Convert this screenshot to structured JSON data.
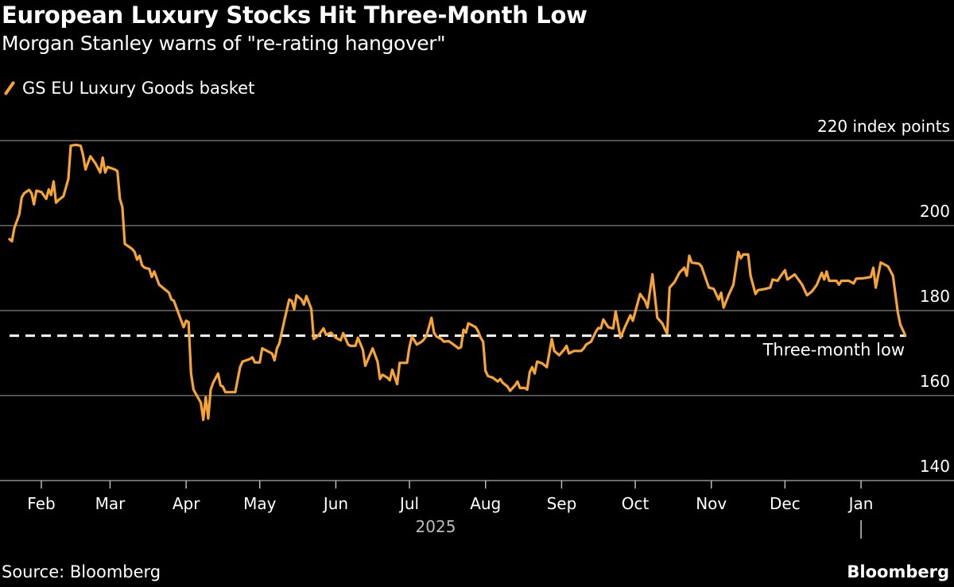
{
  "title": "European Luxury Stocks Hit Three-Month Low",
  "subtitle": "Morgan Stanley warns of \"re-rating hangover\"",
  "source": "Source: Bloomberg",
  "logo": "Bloomberg",
  "colors": {
    "series": "#f7a437",
    "grid": "#6b6b6b",
    "annotation": "#ffffff",
    "background": "#000000",
    "year_label": "#bdbdbd"
  },
  "chart_data": {
    "type": "line",
    "title": "European Luxury Stocks Hit Three-Month Low",
    "subtitle": "Morgan Stanley warns of \"re-rating hangover\"",
    "xlabel": "2025",
    "ylabel": "",
    "y_unit_label": "220 index points",
    "ylim": [
      140,
      220
    ],
    "xlim": [
      "2025-01-19",
      "2026-01-19"
    ],
    "y_ticks": [
      {
        "value": 220,
        "label": "220 index points"
      },
      {
        "value": 200,
        "label": "200"
      },
      {
        "value": 180,
        "label": "180"
      },
      {
        "value": 160,
        "label": "160"
      },
      {
        "value": 140,
        "label": "140"
      }
    ],
    "x_ticks": [
      {
        "date": "2025-02-01",
        "label": "Feb"
      },
      {
        "date": "2025-03-01",
        "label": "Mar"
      },
      {
        "date": "2025-04-01",
        "label": "Apr"
      },
      {
        "date": "2025-05-01",
        "label": "May"
      },
      {
        "date": "2025-06-01",
        "label": "Jun"
      },
      {
        "date": "2025-07-01",
        "label": "Jul"
      },
      {
        "date": "2025-08-01",
        "label": "Aug"
      },
      {
        "date": "2025-09-01",
        "label": "Sep"
      },
      {
        "date": "2025-10-01",
        "label": "Oct"
      },
      {
        "date": "2025-11-01",
        "label": "Nov"
      },
      {
        "date": "2025-12-01",
        "label": "Dec"
      },
      {
        "date": "2026-01-01",
        "label": "Jan"
      }
    ],
    "grid": true,
    "legend": "top-left",
    "annotation": {
      "label": "Three-month low",
      "value": 174.1,
      "style": "dashed"
    },
    "series": [
      {
        "name": "GS EU Luxury Goods basket",
        "points": [
          [
            "2025-01-19",
            196.8
          ],
          [
            "2025-01-20",
            196.3
          ],
          [
            "2025-01-21",
            199.4
          ],
          [
            "2025-01-23",
            202.6
          ],
          [
            "2025-01-24",
            206.6
          ],
          [
            "2025-01-25",
            207.6
          ],
          [
            "2025-01-27",
            208.4
          ],
          [
            "2025-01-28",
            207.6
          ],
          [
            "2025-01-29",
            205.0
          ],
          [
            "2025-01-30",
            208.2
          ],
          [
            "2025-02-01",
            207.9
          ],
          [
            "2025-02-03",
            206.3
          ],
          [
            "2025-02-04",
            208.5
          ],
          [
            "2025-02-05",
            207.2
          ],
          [
            "2025-02-06",
            210.4
          ],
          [
            "2025-02-07",
            205.4
          ],
          [
            "2025-02-08",
            206.0
          ],
          [
            "2025-02-10",
            206.9
          ],
          [
            "2025-02-12",
            211.0
          ],
          [
            "2025-02-13",
            218.8
          ],
          [
            "2025-02-15",
            219.0
          ],
          [
            "2025-02-17",
            218.8
          ],
          [
            "2025-02-18",
            216.6
          ],
          [
            "2025-02-19",
            213.2
          ],
          [
            "2025-02-21",
            216.3
          ],
          [
            "2025-02-23",
            214.7
          ],
          [
            "2025-02-25",
            212.5
          ],
          [
            "2025-02-26",
            216.0
          ],
          [
            "2025-02-27",
            212.5
          ],
          [
            "2025-02-28",
            213.8
          ],
          [
            "2025-03-03",
            213.2
          ],
          [
            "2025-03-04",
            212.8
          ],
          [
            "2025-03-05",
            206.3
          ],
          [
            "2025-03-06",
            204.4
          ],
          [
            "2025-03-07",
            195.7
          ],
          [
            "2025-03-10",
            194.5
          ],
          [
            "2025-03-11",
            193.8
          ],
          [
            "2025-03-12",
            192.0
          ],
          [
            "2025-03-13",
            192.9
          ],
          [
            "2025-03-14",
            190.7
          ],
          [
            "2025-03-15",
            190.1
          ],
          [
            "2025-03-17",
            189.8
          ],
          [
            "2025-03-18",
            187.9
          ],
          [
            "2025-03-19",
            189.2
          ],
          [
            "2025-03-21",
            186.1
          ],
          [
            "2025-03-25",
            184.2
          ],
          [
            "2025-03-26",
            182.6
          ],
          [
            "2025-03-27",
            182.3
          ],
          [
            "2025-03-31",
            176.1
          ],
          [
            "2025-04-01",
            177.6
          ],
          [
            "2025-04-02",
            177.3
          ],
          [
            "2025-04-03",
            165.2
          ],
          [
            "2025-04-04",
            161.4
          ],
          [
            "2025-04-07",
            158.3
          ],
          [
            "2025-04-08",
            154.3
          ],
          [
            "2025-04-09",
            159.6
          ],
          [
            "2025-04-10",
            154.6
          ],
          [
            "2025-04-11",
            161.4
          ],
          [
            "2025-04-12",
            163.0
          ],
          [
            "2025-04-14",
            165.2
          ],
          [
            "2025-04-15",
            162.4
          ],
          [
            "2025-04-16",
            162.1
          ],
          [
            "2025-04-17",
            160.8
          ],
          [
            "2025-04-21",
            160.8
          ],
          [
            "2025-04-23",
            166.7
          ],
          [
            "2025-04-24",
            168.0
          ],
          [
            "2025-04-27",
            168.6
          ],
          [
            "2025-04-28",
            169.0
          ],
          [
            "2025-04-29",
            167.8
          ],
          [
            "2025-05-01",
            167.8
          ],
          [
            "2025-05-02",
            171.1
          ],
          [
            "2025-05-04",
            170.5
          ],
          [
            "2025-05-05",
            170.2
          ],
          [
            "2025-05-06",
            169.9
          ],
          [
            "2025-05-07",
            168.3
          ],
          [
            "2025-05-08",
            171.1
          ],
          [
            "2025-05-09",
            172.3
          ],
          [
            "2025-05-11",
            177.6
          ],
          [
            "2025-05-13",
            182.6
          ],
          [
            "2025-05-14",
            182.3
          ],
          [
            "2025-05-15",
            180.3
          ],
          [
            "2025-05-16",
            183.6
          ],
          [
            "2025-05-18",
            182.6
          ],
          [
            "2025-05-19",
            181.4
          ],
          [
            "2025-05-20",
            183.4
          ],
          [
            "2025-05-22",
            180.4
          ],
          [
            "2025-05-23",
            173.3
          ],
          [
            "2025-05-25",
            174.2
          ],
          [
            "2025-05-27",
            175.8
          ],
          [
            "2025-05-28",
            174.3
          ],
          [
            "2025-05-30",
            174.8
          ],
          [
            "2025-06-01",
            173.6
          ],
          [
            "2025-06-03",
            173.0
          ],
          [
            "2025-06-04",
            174.7
          ],
          [
            "2025-06-06",
            172.0
          ],
          [
            "2025-06-07",
            171.7
          ],
          [
            "2025-06-09",
            171.7
          ],
          [
            "2025-06-10",
            173.6
          ],
          [
            "2025-06-12",
            170.8
          ],
          [
            "2025-06-13",
            167.0
          ],
          [
            "2025-06-16",
            171.1
          ],
          [
            "2025-06-18",
            168.0
          ],
          [
            "2025-06-19",
            163.9
          ],
          [
            "2025-06-20",
            164.9
          ],
          [
            "2025-06-22",
            164.2
          ],
          [
            "2025-06-23",
            163.6
          ],
          [
            "2025-06-24",
            166.1
          ],
          [
            "2025-06-26",
            162.7
          ],
          [
            "2025-06-27",
            167.7
          ],
          [
            "2025-06-30",
            167.7
          ],
          [
            "2025-07-01",
            171.4
          ],
          [
            "2025-07-02",
            173.9
          ],
          [
            "2025-07-04",
            172.0
          ],
          [
            "2025-07-06",
            172.7
          ],
          [
            "2025-07-07",
            173.3
          ],
          [
            "2025-07-08",
            174.2
          ],
          [
            "2025-07-10",
            178.3
          ],
          [
            "2025-07-11",
            174.8
          ],
          [
            "2025-07-12",
            173.9
          ],
          [
            "2025-07-14",
            173.3
          ],
          [
            "2025-07-15",
            172.7
          ],
          [
            "2025-07-17",
            172.8
          ],
          [
            "2025-07-19",
            172.0
          ],
          [
            "2025-07-21",
            171.1
          ],
          [
            "2025-07-22",
            171.4
          ],
          [
            "2025-07-23",
            175.5
          ],
          [
            "2025-07-24",
            174.8
          ],
          [
            "2025-07-25",
            177.0
          ],
          [
            "2025-07-28",
            176.1
          ],
          [
            "2025-07-29",
            175.1
          ],
          [
            "2025-07-30",
            173.6
          ],
          [
            "2025-07-31",
            172.7
          ],
          [
            "2025-08-01",
            165.8
          ],
          [
            "2025-08-02",
            164.6
          ],
          [
            "2025-08-04",
            164.2
          ],
          [
            "2025-08-06",
            163.3
          ],
          [
            "2025-08-07",
            163.9
          ],
          [
            "2025-08-08",
            163.0
          ],
          [
            "2025-08-10",
            162.1
          ],
          [
            "2025-08-11",
            161.1
          ],
          [
            "2025-08-13",
            162.4
          ],
          [
            "2025-08-14",
            163.3
          ],
          [
            "2025-08-15",
            161.8
          ],
          [
            "2025-08-17",
            161.8
          ],
          [
            "2025-08-18",
            161.4
          ],
          [
            "2025-08-19",
            165.5
          ],
          [
            "2025-08-20",
            166.7
          ],
          [
            "2025-08-21",
            165.2
          ],
          [
            "2025-08-22",
            168.0
          ],
          [
            "2025-08-24",
            167.6
          ],
          [
            "2025-08-26",
            166.7
          ],
          [
            "2025-08-28",
            173.3
          ],
          [
            "2025-08-29",
            170.5
          ],
          [
            "2025-08-31",
            169.5
          ],
          [
            "2025-09-02",
            170.8
          ],
          [
            "2025-09-03",
            171.7
          ],
          [
            "2025-09-04",
            169.9
          ],
          [
            "2025-09-06",
            170.5
          ],
          [
            "2025-09-09",
            170.5
          ],
          [
            "2025-09-10",
            171.1
          ],
          [
            "2025-09-11",
            172.0
          ],
          [
            "2025-09-13",
            172.7
          ],
          [
            "2025-09-15",
            175.1
          ],
          [
            "2025-09-16",
            175.9
          ],
          [
            "2025-09-17",
            175.8
          ],
          [
            "2025-09-18",
            177.9
          ],
          [
            "2025-09-20",
            176.1
          ],
          [
            "2025-09-22",
            175.8
          ],
          [
            "2025-09-23",
            179.8
          ],
          [
            "2025-09-25",
            173.6
          ],
          [
            "2025-09-27",
            176.4
          ],
          [
            "2025-09-29",
            178.9
          ],
          [
            "2025-09-30",
            177.6
          ],
          [
            "2025-10-03",
            183.9
          ],
          [
            "2025-10-05",
            182.3
          ],
          [
            "2025-10-06",
            180.7
          ],
          [
            "2025-10-08",
            188.5
          ],
          [
            "2025-10-10",
            178.3
          ],
          [
            "2025-10-12",
            177.0
          ],
          [
            "2025-10-14",
            174.5
          ],
          [
            "2025-10-15",
            185.4
          ],
          [
            "2025-10-17",
            186.7
          ],
          [
            "2025-10-19",
            188.9
          ],
          [
            "2025-10-21",
            190.1
          ],
          [
            "2025-10-22",
            188.2
          ],
          [
            "2025-10-23",
            192.9
          ],
          [
            "2025-10-24",
            191.3
          ],
          [
            "2025-10-27",
            191.0
          ],
          [
            "2025-10-28",
            190.4
          ],
          [
            "2025-10-31",
            185.4
          ],
          [
            "2025-11-02",
            185.1
          ],
          [
            "2025-11-04",
            182.6
          ],
          [
            "2025-11-05",
            184.2
          ],
          [
            "2025-11-06",
            180.7
          ],
          [
            "2025-11-08",
            183.6
          ],
          [
            "2025-11-10",
            186.1
          ],
          [
            "2025-11-12",
            193.8
          ],
          [
            "2025-11-13",
            192.3
          ],
          [
            "2025-11-14",
            193.2
          ],
          [
            "2025-11-16",
            193.2
          ],
          [
            "2025-11-17",
            188.2
          ],
          [
            "2025-11-19",
            183.9
          ],
          [
            "2025-11-20",
            184.8
          ],
          [
            "2025-11-23",
            185.1
          ],
          [
            "2025-11-25",
            185.4
          ],
          [
            "2025-11-26",
            187.3
          ],
          [
            "2025-11-28",
            187.0
          ],
          [
            "2025-11-29",
            187.9
          ],
          [
            "2025-12-01",
            189.5
          ],
          [
            "2025-12-02",
            187.3
          ],
          [
            "2025-12-05",
            188.5
          ],
          [
            "2025-12-08",
            186.1
          ],
          [
            "2025-12-10",
            183.6
          ],
          [
            "2025-12-12",
            184.5
          ],
          [
            "2025-12-14",
            186.1
          ],
          [
            "2025-12-16",
            188.9
          ],
          [
            "2025-12-17",
            187.3
          ],
          [
            "2025-12-18",
            189.2
          ],
          [
            "2025-12-19",
            187.0
          ],
          [
            "2025-12-22",
            187.0
          ],
          [
            "2025-12-23",
            186.1
          ],
          [
            "2025-12-24",
            187.0
          ],
          [
            "2025-12-27",
            187.0
          ],
          [
            "2025-12-29",
            186.4
          ],
          [
            "2025-12-30",
            187.5
          ],
          [
            "2026-01-02",
            187.6
          ],
          [
            "2026-01-05",
            187.9
          ],
          [
            "2026-01-06",
            190.1
          ],
          [
            "2026-01-07",
            185.4
          ],
          [
            "2026-01-09",
            191.3
          ],
          [
            "2026-01-12",
            190.4
          ],
          [
            "2026-01-14",
            188.2
          ],
          [
            "2026-01-16",
            179.5
          ],
          [
            "2026-01-17",
            176.7
          ],
          [
            "2026-01-19",
            174.2
          ]
        ]
      }
    ]
  }
}
